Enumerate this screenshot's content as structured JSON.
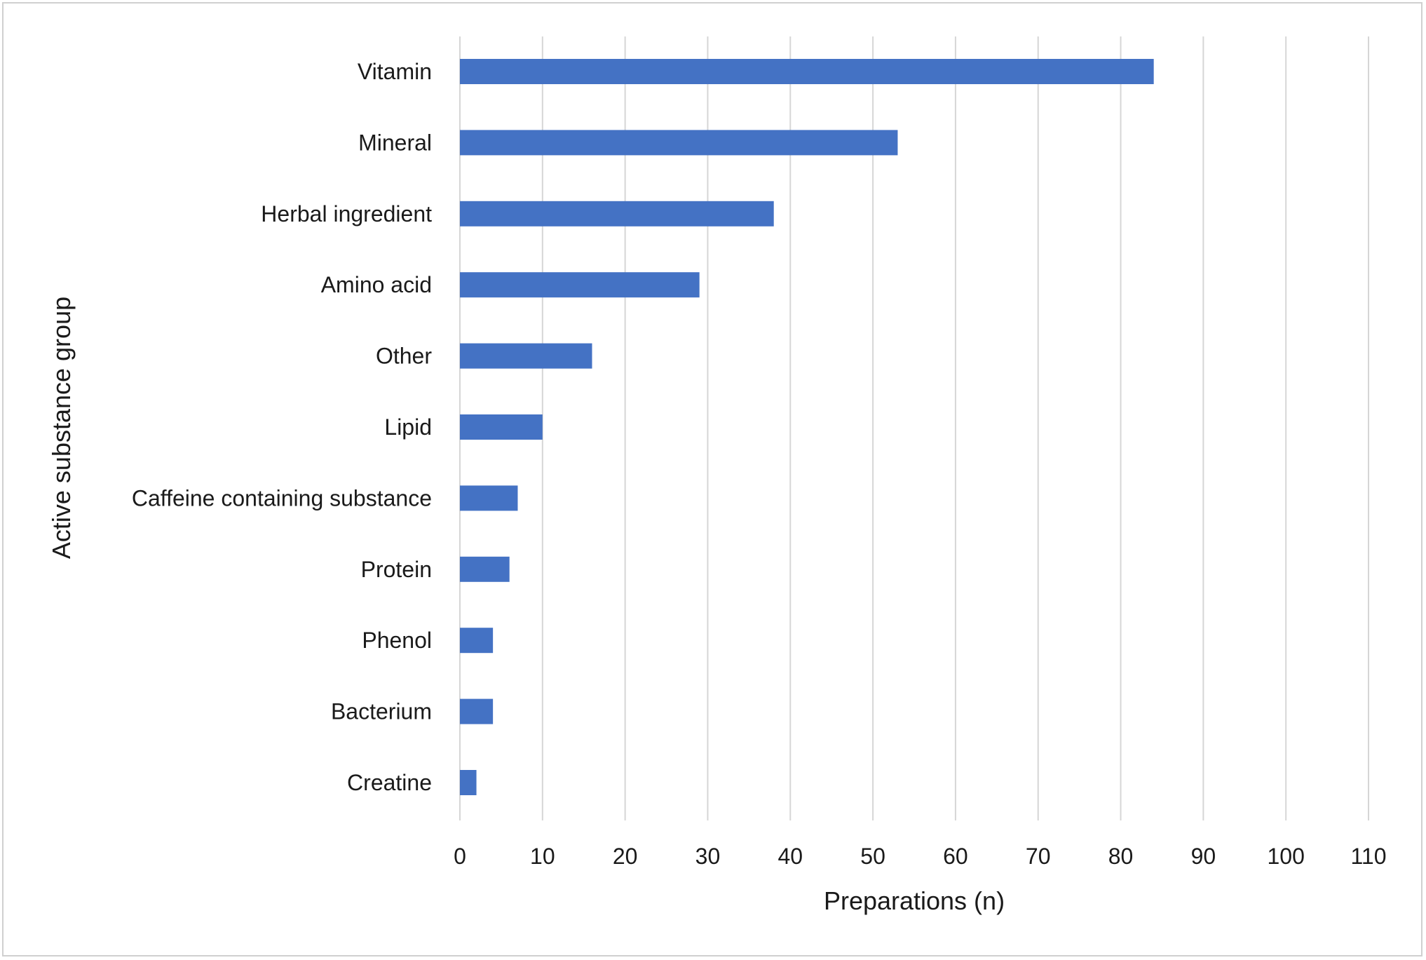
{
  "chart_data": {
    "type": "bar",
    "orientation": "horizontal",
    "categories": [
      "Vitamin",
      "Mineral",
      "Herbal ingredient",
      "Amino acid",
      "Other",
      "Lipid",
      "Caffeine containing substance",
      "Protein",
      "Phenol",
      "Bacterium",
      "Creatine"
    ],
    "values": [
      84,
      53,
      38,
      29,
      16,
      10,
      7,
      6,
      4,
      4,
      2
    ],
    "xlabel": "Preparations (n)",
    "ylabel": "Active substance group",
    "xlim": [
      0,
      110
    ],
    "xticks": [
      0,
      10,
      20,
      30,
      40,
      50,
      60,
      70,
      80,
      90,
      100,
      110
    ],
    "grid": "vertical",
    "legend": "none",
    "bar_color": "#4472C4"
  }
}
